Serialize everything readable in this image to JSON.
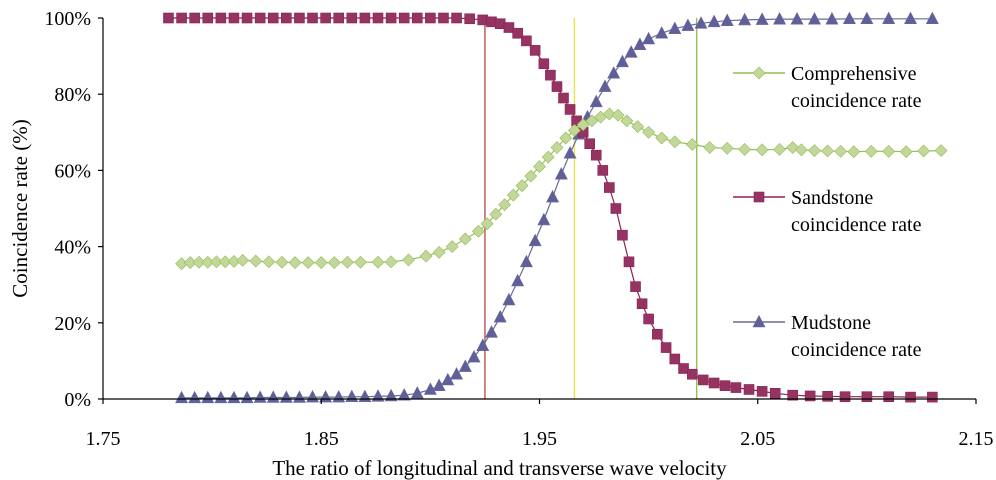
{
  "chart_data": {
    "type": "line",
    "title": "",
    "xlabel": "The ratio of longitudinal and transverse wave velocity",
    "ylabel": "Coincidence rate (%)",
    "xlim": [
      1.75,
      2.15
    ],
    "ylim": [
      0,
      100
    ],
    "x_ticks": [
      "1.75",
      "1.85",
      "1.95",
      "2.05",
      "2.15"
    ],
    "y_ticks": [
      "0%",
      "20%",
      "40%",
      "60%",
      "80%",
      "100%"
    ],
    "grid": false,
    "legend_position": "right",
    "series": [
      {
        "key": "comprehensive",
        "name_line1": "Comprehensive",
        "name_line2": "coincidence rate",
        "color": "#92C050",
        "marker_fill": "#C3D69B",
        "marker": "diamond",
        "x": [
          1.786,
          1.79,
          1.794,
          1.798,
          1.802,
          1.806,
          1.81,
          1.814,
          1.82,
          1.826,
          1.832,
          1.838,
          1.844,
          1.85,
          1.856,
          1.862,
          1.868,
          1.876,
          1.882,
          1.89,
          1.898,
          1.904,
          1.91,
          1.916,
          1.922,
          1.926,
          1.93,
          1.934,
          1.938,
          1.942,
          1.946,
          1.95,
          1.954,
          1.958,
          1.962,
          1.966,
          1.97,
          1.974,
          1.978,
          1.982,
          1.986,
          1.99,
          1.995,
          2.0,
          2.006,
          2.012,
          2.02,
          2.028,
          2.036,
          2.044,
          2.052,
          2.06,
          2.066,
          2.07,
          2.076,
          2.082,
          2.088,
          2.094,
          2.102,
          2.11,
          2.118,
          2.126,
          2.134
        ],
        "y": [
          35.5,
          35.8,
          35.9,
          35.9,
          36.0,
          36.0,
          36.1,
          36.4,
          36.2,
          36.0,
          35.9,
          35.8,
          35.8,
          35.8,
          35.8,
          35.9,
          35.9,
          35.9,
          36.0,
          36.5,
          37.5,
          38.5,
          40.0,
          42.0,
          44.0,
          46.0,
          48.5,
          51.0,
          53.5,
          56.0,
          58.5,
          61.0,
          63.5,
          66.0,
          68.5,
          70.5,
          72.0,
          73.0,
          74.0,
          74.8,
          74.5,
          73.0,
          71.5,
          70.0,
          68.5,
          67.5,
          66.8,
          66.0,
          65.8,
          65.5,
          65.4,
          65.5,
          66.0,
          65.4,
          65.2,
          65.1,
          65.0,
          64.9,
          65.0,
          65.0,
          64.9,
          65.1,
          65.2
        ]
      },
      {
        "key": "sandstone",
        "name_line1": "Sandstone",
        "name_line2": "coincidence rate",
        "color": "#8B2252",
        "marker_fill": "#953463",
        "marker": "square",
        "x": [
          1.78,
          1.786,
          1.792,
          1.798,
          1.804,
          1.81,
          1.816,
          1.822,
          1.828,
          1.834,
          1.84,
          1.846,
          1.852,
          1.858,
          1.864,
          1.87,
          1.876,
          1.882,
          1.888,
          1.894,
          1.9,
          1.906,
          1.912,
          1.918,
          1.924,
          1.928,
          1.932,
          1.936,
          1.94,
          1.944,
          1.948,
          1.952,
          1.955,
          1.958,
          1.961,
          1.964,
          1.967,
          1.97,
          1.973,
          1.976,
          1.979,
          1.982,
          1.985,
          1.988,
          1.991,
          1.994,
          1.997,
          2.0,
          2.004,
          2.008,
          2.012,
          2.016,
          2.02,
          2.025,
          2.03,
          2.035,
          2.04,
          2.046,
          2.052,
          2.058,
          2.066,
          2.074,
          2.082,
          2.09,
          2.1,
          2.11,
          2.12,
          2.13
        ],
        "y": [
          100,
          100,
          100,
          100,
          100,
          100,
          100,
          100,
          100,
          100,
          100,
          100,
          100,
          100,
          100,
          100,
          100,
          100,
          100,
          100,
          100,
          100,
          100,
          99.8,
          99.5,
          99.0,
          98.5,
          97.5,
          96.0,
          94.0,
          91.5,
          88.0,
          85.0,
          82.0,
          79.0,
          76.0,
          73.0,
          70.0,
          67.0,
          64.0,
          60.0,
          55.5,
          50.0,
          43.0,
          36.0,
          29.5,
          25.0,
          21.0,
          17.0,
          13.5,
          10.5,
          8.0,
          6.5,
          5.0,
          4.2,
          3.5,
          3.0,
          2.5,
          2.0,
          1.5,
          1.0,
          0.8,
          0.7,
          0.6,
          0.6,
          0.6,
          0.5,
          0.5
        ]
      },
      {
        "key": "mudstone",
        "name_line1": "Mudstone",
        "name_line2": "coincidence rate",
        "color": "#6A6A9A",
        "marker_fill": "#5F5F9A",
        "marker": "triangle",
        "x": [
          1.786,
          1.792,
          1.798,
          1.804,
          1.81,
          1.816,
          1.822,
          1.828,
          1.834,
          1.84,
          1.846,
          1.852,
          1.858,
          1.864,
          1.87,
          1.876,
          1.882,
          1.888,
          1.894,
          1.9,
          1.904,
          1.908,
          1.912,
          1.916,
          1.92,
          1.924,
          1.928,
          1.932,
          1.936,
          1.94,
          1.944,
          1.948,
          1.952,
          1.956,
          1.96,
          1.964,
          1.968,
          1.972,
          1.976,
          1.98,
          1.984,
          1.988,
          1.992,
          1.996,
          2.0,
          2.006,
          2.012,
          2.018,
          2.024,
          2.03,
          2.036,
          2.044,
          2.052,
          2.06,
          2.068,
          2.076,
          2.084,
          2.092,
          2.1,
          2.11,
          2.12,
          2.13
        ],
        "y": [
          0.3,
          0.3,
          0.3,
          0.3,
          0.3,
          0.3,
          0.4,
          0.4,
          0.4,
          0.4,
          0.5,
          0.5,
          0.5,
          0.6,
          0.6,
          0.7,
          0.8,
          1.0,
          1.5,
          2.5,
          3.5,
          5.0,
          6.5,
          8.5,
          11.0,
          14.0,
          17.5,
          21.5,
          26.0,
          31.0,
          36.0,
          41.5,
          47.0,
          53.0,
          59.0,
          64.5,
          69.5,
          74.0,
          78.0,
          82.0,
          85.5,
          88.5,
          91.0,
          93.0,
          94.5,
          96.0,
          97.2,
          98.0,
          98.6,
          99.0,
          99.3,
          99.5,
          99.6,
          99.7,
          99.7,
          99.7,
          99.7,
          99.8,
          99.8,
          99.8,
          99.8,
          99.8
        ]
      }
    ],
    "reference_lines": [
      {
        "x": 1.925,
        "color": "#C0504D"
      },
      {
        "x": 1.966,
        "color": "#E6E64C"
      },
      {
        "x": 2.022,
        "color": "#92C050"
      }
    ]
  }
}
